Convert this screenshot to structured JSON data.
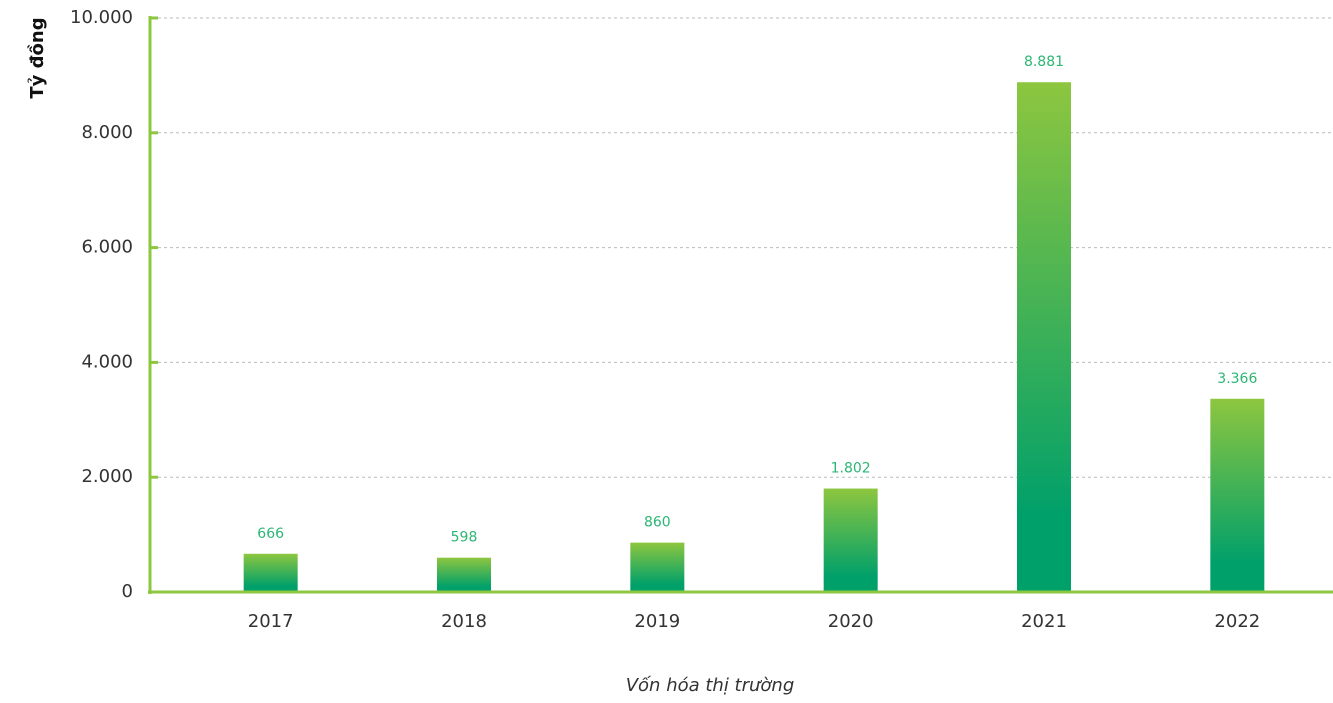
{
  "chart_data": {
    "type": "bar",
    "y_axis_label": "Tỷ đồng",
    "x_axis_label": "Vốn hóa thị trường",
    "categories": [
      "2017",
      "2018",
      "2019",
      "2020",
      "2021",
      "2022"
    ],
    "values": [
      666,
      598,
      860,
      1802,
      8881,
      3366
    ],
    "value_labels": [
      "666",
      "598",
      "860",
      "1.802",
      "8.881",
      "3.366"
    ],
    "gradient": [
      "#8dc63f",
      "#00a06a"
    ],
    "ylim": [
      0,
      10000
    ],
    "yticks": [
      0,
      {
        "value": 2000,
        "label": "2.000"
      },
      {
        "value": 4000,
        "label": "4.000"
      },
      {
        "value": 6000,
        "label": "6.000"
      },
      {
        "value": 8000,
        "label": "8.000"
      },
      {
        "value": 10000,
        "label": "10.000"
      }
    ],
    "grid": true
  }
}
